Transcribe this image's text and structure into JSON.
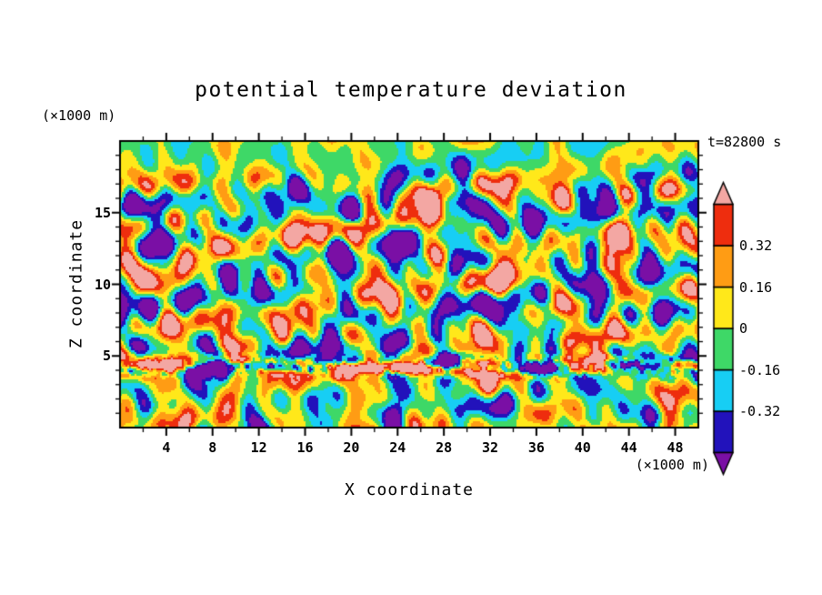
{
  "chart_data": {
    "type": "heatmap",
    "title": "potential temperature deviation",
    "xlabel": "X coordinate",
    "ylabel": "Z coordinate",
    "x_units": "(×1000 m)",
    "y_units": "(×1000 m)",
    "annotation": "t=82800 s",
    "xlim": [
      0,
      50
    ],
    "ylim": [
      0,
      20
    ],
    "x_ticks_major": [
      4,
      8,
      12,
      16,
      20,
      24,
      28,
      32,
      36,
      40,
      44,
      48
    ],
    "x_tick_minor_step": 2,
    "y_ticks_major": [
      5,
      10,
      15
    ],
    "y_tick_minor_step": 1,
    "grid": false,
    "legend_position": "right-colorbar",
    "colorbar": {
      "orientation": "vertical",
      "tick_labels": [
        "0.32",
        "0.16",
        "0",
        "-0.16",
        "-0.32"
      ],
      "levels": [
        -0.48,
        -0.32,
        -0.16,
        0,
        0.16,
        0.32,
        0.48
      ],
      "colors": [
        "#7A0FA5",
        "#2212BB",
        "#17CEF4",
        "#3ED867",
        "#FFE81A",
        "#FF9C14",
        "#EE2D0E",
        "#F3A7A3"
      ],
      "color_meanings": [
        "below -0.48 (arrow)",
        "-0.48 to -0.32",
        "-0.32 to -0.16",
        "-0.16 to 0",
        "0 to 0.16",
        "0.16 to 0.32",
        "0.32 to 0.48",
        "above 0.48 (arrow)"
      ]
    },
    "field": {
      "description": "Turbulent potential-temperature deviation (K) in an x-z cross section: near-zero green/cyan background, strong +/-0.3 to 0.5 convective anomalies between z=5 and z=16 km, a thin high-amplitude inversion band near z=4.2 km with elongated warm (pink) streaks flanked by cold (navy/purple) filaments and fine-grained detail, weaker anomalies above z=17 km and below z=3 km.",
      "seed": 42,
      "base_amplitude": 0.34,
      "lower_amplitude": 0.26,
      "bias": -0.04,
      "top_taper": {
        "start": 16,
        "end": 19.2,
        "factor": 0.38
      },
      "band": {
        "center_z": 4.25,
        "sigma": 0.75,
        "amplitude": 0.45,
        "warm_bias": 0.12,
        "fine_amplitude": 0.14,
        "stretch_x": 2.4,
        "squash_z": 0.45
      },
      "iso_noise": {
        "components": 24,
        "wavelength_min": 2.2,
        "wavelength_max": 9.0
      },
      "band_noise": {
        "components": 18,
        "wavelength_min": 1.6,
        "wavelength_max": 6.0
      },
      "fine_noise": {
        "components": 16,
        "wavelength_min": 0.5,
        "wavelength_max": 1.8
      }
    },
    "frame_color": "#000000",
    "background_color": "#ffffff"
  }
}
